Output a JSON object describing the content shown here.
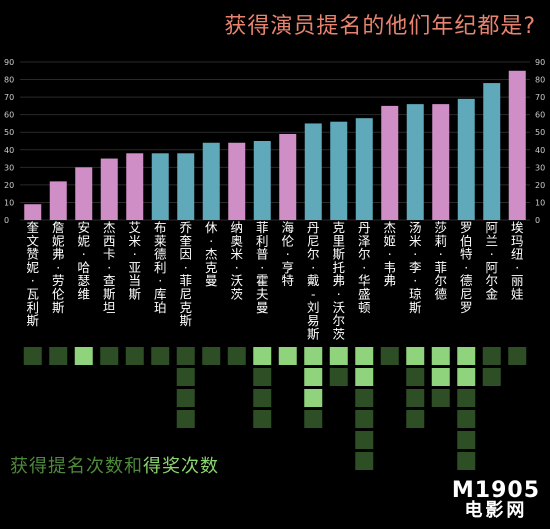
{
  "title": "获得演员提名的他们年纪都是?",
  "caption": {
    "part1": "获得提名次数和",
    "part2": "得奖次数"
  },
  "watermark": {
    "line1": "M1905",
    "line2": "电影网"
  },
  "colors": {
    "pink": "#cf8fc6",
    "blue": "#5fa9ba",
    "dark_green": "#2e4f25",
    "light_green": "#8fd37c",
    "axis_text": "#cccccc"
  },
  "chart_data": {
    "type": "bar",
    "title": "获得演员提名的他们年纪都是?",
    "ylim": [
      0,
      90
    ],
    "yticks": [
      0,
      10,
      20,
      30,
      40,
      50,
      60,
      70,
      80,
      90
    ],
    "categories": [
      "奎文赞妮·瓦利斯",
      "詹妮弗·劳伦斯",
      "安妮·哈瑟维",
      "杰西卡·查斯坦",
      "艾米·亚当斯",
      "布莱德利·库珀",
      "乔奎因·菲尼克斯",
      "休·杰克曼",
      "纳奥米·沃茨",
      "菲利普·霍夫曼",
      "海伦·亨特",
      "丹尼尔·戴-刘易斯",
      "克里斯托弗·沃尔茨",
      "丹泽尔·华盛顿",
      "杰姬·韦弗",
      "汤米·李·琼斯",
      "莎莉·菲尔德",
      "罗伯特·德尼罗",
      "阿兰·阿尔金",
      "埃玛纽·丽娃"
    ],
    "values": [
      9,
      22,
      30,
      35,
      38,
      38,
      38,
      44,
      44,
      45,
      49,
      55,
      56,
      58,
      65,
      66,
      66,
      69,
      78,
      85
    ],
    "gender": [
      "female",
      "female",
      "female",
      "female",
      "female",
      "male",
      "male",
      "male",
      "female",
      "male",
      "female",
      "male",
      "male",
      "male",
      "female",
      "male",
      "female",
      "male",
      "male",
      "female"
    ],
    "nominations": [
      1,
      1,
      1,
      1,
      1,
      1,
      4,
      1,
      1,
      4,
      1,
      4,
      2,
      6,
      1,
      4,
      3,
      6,
      2,
      1
    ],
    "wins": [
      0,
      0,
      1,
      0,
      0,
      0,
      0,
      0,
      0,
      1,
      1,
      3,
      1,
      2,
      0,
      1,
      2,
      2,
      0,
      0
    ]
  }
}
